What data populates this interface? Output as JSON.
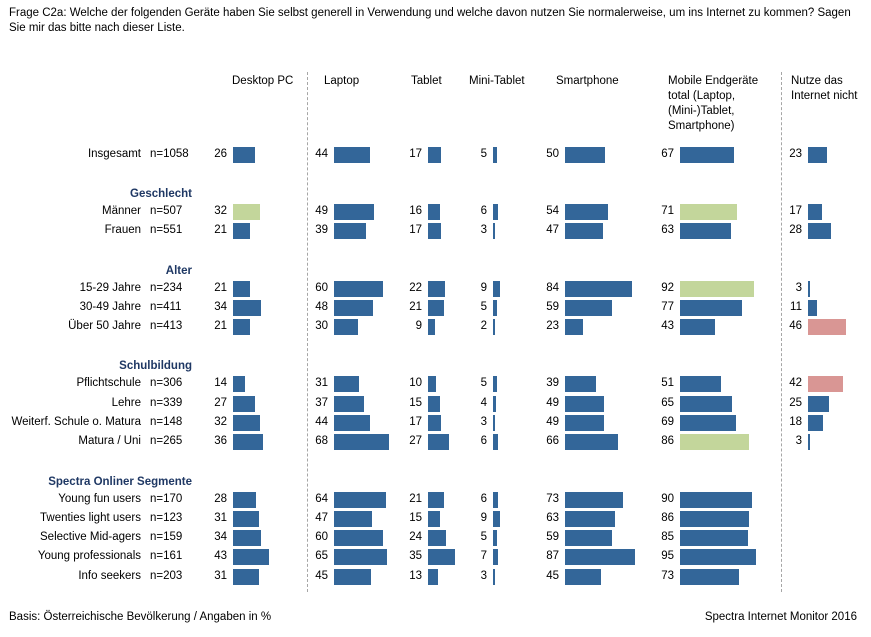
{
  "question": "Frage C2a: Welche der folgenden Geräte haben Sie selbst generell in Verwendung und welche davon nutzen Sie normalerweise, um ins Internet zu kommen? Sagen Sie mir das bitte nach dieser Liste.",
  "footer": {
    "basis": "Basis: Österreichische Bevölkerung / Angaben in %",
    "source": "Spectra Internet Monitor 2016"
  },
  "colors": {
    "default": "#336699",
    "high": "#c3d69b",
    "high_nonuser": "#d99694"
  },
  "chart_data": {
    "type": "bar",
    "columns": [
      {
        "key": "desktop",
        "label": "Desktop PC"
      },
      {
        "key": "laptop",
        "label": "Laptop"
      },
      {
        "key": "tablet",
        "label": "Tablet"
      },
      {
        "key": "minitablet",
        "label": "Mini-Tablet"
      },
      {
        "key": "smartphone",
        "label": "Smartphone"
      },
      {
        "key": "mobile",
        "label": "Mobile Endgeräte total (Laptop, (Mini-)Tablet, Smartphone)"
      },
      {
        "key": "nonuser",
        "label": "Nutze das Internet nicht"
      }
    ],
    "groups": [
      {
        "name": "",
        "rows": [
          {
            "label": "Insgesamt",
            "n": "n=1058",
            "values": [
              26,
              44,
              17,
              5,
              50,
              67,
              23
            ],
            "highlight": []
          }
        ]
      },
      {
        "name": "Geschlecht",
        "rows": [
          {
            "label": "Männer",
            "n": "n=507",
            "values": [
              32,
              49,
              16,
              6,
              54,
              71,
              17
            ],
            "highlight": [
              0,
              5
            ]
          },
          {
            "label": "Frauen",
            "n": "n=551",
            "values": [
              21,
              39,
              17,
              3,
              47,
              63,
              28
            ],
            "highlight": []
          }
        ]
      },
      {
        "name": "Alter",
        "rows": [
          {
            "label": "15-29 Jahre",
            "n": "n=234",
            "values": [
              21,
              60,
              22,
              9,
              84,
              92,
              3
            ],
            "highlight": [
              5
            ]
          },
          {
            "label": "30-49 Jahre",
            "n": "n=411",
            "values": [
              34,
              48,
              21,
              5,
              59,
              77,
              11
            ],
            "highlight": []
          },
          {
            "label": "Über 50 Jahre",
            "n": "n=413",
            "values": [
              21,
              30,
              9,
              2,
              23,
              43,
              46
            ],
            "highlight": [
              6
            ]
          }
        ]
      },
      {
        "name": "Schulbildung",
        "rows": [
          {
            "label": "Pflichtschule",
            "n": "n=306",
            "values": [
              14,
              31,
              10,
              5,
              39,
              51,
              42
            ],
            "highlight": [
              6
            ]
          },
          {
            "label": "Lehre",
            "n": "n=339",
            "values": [
              27,
              37,
              15,
              4,
              49,
              65,
              25
            ],
            "highlight": []
          },
          {
            "label": "Weiterf. Schule o. Matura",
            "n": "n=148",
            "values": [
              32,
              44,
              17,
              3,
              49,
              69,
              18
            ],
            "highlight": []
          },
          {
            "label": "Matura / Uni",
            "n": "n=265",
            "values": [
              36,
              68,
              27,
              6,
              66,
              86,
              3
            ],
            "highlight": [
              5
            ]
          }
        ]
      },
      {
        "name": "Spectra Onliner Segmente",
        "rows": [
          {
            "label": "Young fun users",
            "n": "n=170",
            "values": [
              28,
              64,
              21,
              6,
              73,
              90,
              null
            ],
            "highlight": []
          },
          {
            "label": "Twenties light users",
            "n": "n=123",
            "values": [
              31,
              47,
              15,
              9,
              63,
              86,
              null
            ],
            "highlight": []
          },
          {
            "label": "Selective Mid-agers",
            "n": "n=159",
            "values": [
              34,
              60,
              24,
              5,
              59,
              85,
              null
            ],
            "highlight": []
          },
          {
            "label": "Young professionals",
            "n": "n=161",
            "values": [
              43,
              65,
              35,
              7,
              87,
              95,
              null
            ],
            "highlight": []
          },
          {
            "label": "Info seekers",
            "n": "n=203",
            "values": [
              31,
              45,
              13,
              3,
              45,
              73,
              null
            ],
            "highlight": []
          }
        ]
      }
    ]
  }
}
